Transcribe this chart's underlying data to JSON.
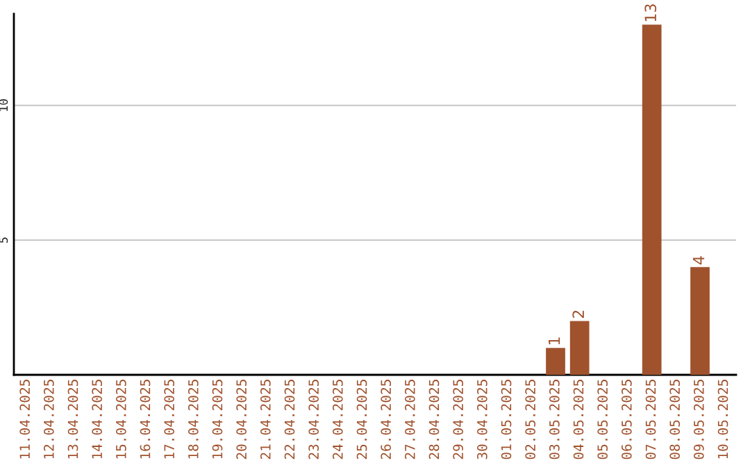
{
  "chart_data": {
    "type": "bar",
    "categories": [
      "11.04.2025",
      "12.04.2025",
      "13.04.2025",
      "14.04.2025",
      "15.04.2025",
      "16.04.2025",
      "17.04.2025",
      "18.04.2025",
      "19.04.2025",
      "20.04.2025",
      "21.04.2025",
      "22.04.2025",
      "23.04.2025",
      "24.04.2025",
      "25.04.2025",
      "26.04.2025",
      "27.04.2025",
      "28.04.2025",
      "29.04.2025",
      "30.04.2025",
      "01.05.2025",
      "02.05.2025",
      "03.05.2025",
      "04.05.2025",
      "05.05.2025",
      "06.05.2025",
      "07.05.2025",
      "08.05.2025",
      "09.05.2025",
      "10.05.2025"
    ],
    "values": [
      0,
      0,
      0,
      0,
      0,
      0,
      0,
      0,
      0,
      0,
      0,
      0,
      0,
      0,
      0,
      0,
      0,
      0,
      0,
      0,
      0,
      0,
      1,
      2,
      0,
      0,
      13,
      0,
      4,
      0
    ],
    "value_labels": [
      null,
      null,
      null,
      null,
      null,
      null,
      null,
      null,
      null,
      null,
      null,
      null,
      null,
      null,
      null,
      null,
      null,
      null,
      null,
      null,
      null,
      null,
      "1",
      "2",
      null,
      null,
      "13",
      null,
      "4",
      null
    ],
    "color": "#a0522d",
    "ylim": [
      0,
      13.4
    ],
    "yticks": [
      5,
      10
    ],
    "grid": "y"
  }
}
